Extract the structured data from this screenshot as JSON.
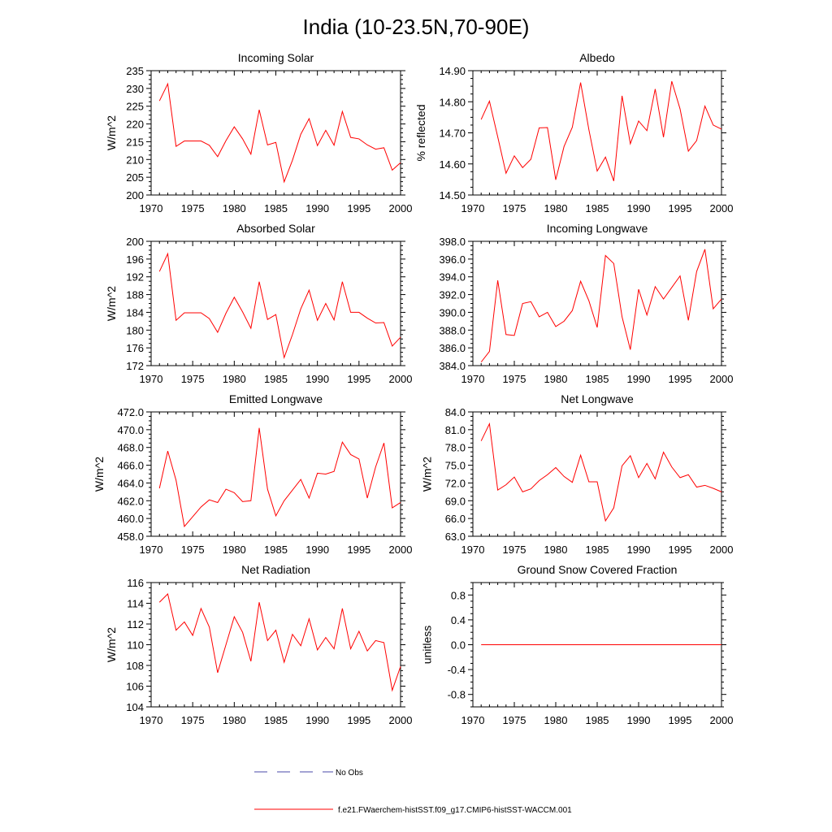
{
  "figure": {
    "title": "India (10-23.5N,70-90E)"
  },
  "legend": {
    "entries": [
      {
        "label": "No Obs",
        "color": "#4a4aa8",
        "dash": true
      },
      {
        "label": "f.e21.FWaerchem-histSST.f09_g17.CMIP6-histSST-WACCM.001",
        "color": "#ff0000",
        "dash": false
      }
    ]
  },
  "colors": {
    "series": "#ff0000",
    "axis": "#000000",
    "background": "#ffffff"
  },
  "chart_data": [
    {
      "type": "line",
      "title": "Incoming Solar",
      "xlabel": "",
      "ylabel": "W/m^2",
      "xlim": [
        1970,
        2000
      ],
      "ylim": [
        200,
        235
      ],
      "xticks": [
        1970,
        1975,
        1980,
        1985,
        1990,
        1995,
        2000
      ],
      "yticks": [
        "200",
        "205",
        "210",
        "215",
        "220",
        "225",
        "230",
        "235"
      ],
      "x": [
        1971,
        1972,
        1973,
        1974,
        1975,
        1976,
        1977,
        1978,
        1979,
        1980,
        1981,
        1982,
        1983,
        1984,
        1985,
        1986,
        1987,
        1988,
        1989,
        1990,
        1991,
        1992,
        1993,
        1994,
        1995,
        1996,
        1997,
        1998,
        1999,
        2000
      ],
      "series": [
        {
          "values": [
            226.5,
            231.3,
            213.7,
            215.2,
            215.2,
            215.2,
            214.0,
            210.8,
            215.3,
            219.2,
            215.8,
            211.5,
            224.0,
            214.1,
            214.8,
            203.7,
            209.8,
            217.1,
            221.5,
            213.9,
            218.2,
            214.0,
            223.5,
            216.2,
            215.8,
            214.1,
            212.9,
            213.3,
            207.0,
            209.1
          ]
        }
      ]
    },
    {
      "type": "line",
      "title": "Albedo",
      "xlabel": "",
      "ylabel": "% reflected",
      "xlim": [
        1970,
        2000
      ],
      "ylim": [
        14.5,
        14.9
      ],
      "xticks": [
        1970,
        1975,
        1980,
        1985,
        1990,
        1995,
        2000
      ],
      "yticks": [
        "14.50",
        "14.60",
        "14.70",
        "14.80",
        "14.90"
      ],
      "x": [
        1971,
        1972,
        1973,
        1974,
        1975,
        1976,
        1977,
        1978,
        1979,
        1980,
        1981,
        1982,
        1983,
        1984,
        1985,
        1986,
        1987,
        1988,
        1989,
        1990,
        1991,
        1992,
        1993,
        1994,
        1995,
        1996,
        1997,
        1998,
        1999,
        2000
      ],
      "series": [
        {
          "values": [
            14.743,
            14.802,
            14.687,
            14.57,
            14.626,
            14.588,
            14.615,
            14.716,
            14.717,
            14.549,
            14.656,
            14.718,
            14.862,
            14.71,
            14.577,
            14.622,
            14.545,
            14.819,
            14.665,
            14.738,
            14.707,
            14.841,
            14.686,
            14.866,
            14.777,
            14.641,
            14.675,
            14.786,
            14.725,
            14.712
          ]
        }
      ]
    },
    {
      "type": "line",
      "title": "Absorbed Solar",
      "xlabel": "",
      "ylabel": "W/m^2",
      "xlim": [
        1970,
        2000
      ],
      "ylim": [
        172,
        200
      ],
      "xticks": [
        1970,
        1975,
        1980,
        1985,
        1990,
        1995,
        2000
      ],
      "yticks": [
        "172",
        "176",
        "180",
        "184",
        "188",
        "192",
        "196",
        "200"
      ],
      "x": [
        1971,
        1972,
        1973,
        1974,
        1975,
        1976,
        1977,
        1978,
        1979,
        1980,
        1981,
        1982,
        1983,
        1984,
        1985,
        1986,
        1987,
        1988,
        1989,
        1990,
        1991,
        1992,
        1993,
        1994,
        1995,
        1996,
        1997,
        1998,
        1999,
        2000
      ],
      "series": [
        {
          "values": [
            193.2,
            197.2,
            182.2,
            183.9,
            183.9,
            183.9,
            182.6,
            179.5,
            183.8,
            187.4,
            184.1,
            180.4,
            190.9,
            182.4,
            183.5,
            173.8,
            179.0,
            184.8,
            189.0,
            182.2,
            186.0,
            182.3,
            190.9,
            184.0,
            184.0,
            182.7,
            181.6,
            181.7,
            176.4,
            178.4
          ]
        }
      ]
    },
    {
      "type": "line",
      "title": "Incoming Longwave",
      "xlabel": "",
      "ylabel": "",
      "xlim": [
        1970,
        2000
      ],
      "ylim": [
        384.0,
        398.0
      ],
      "xticks": [
        1970,
        1975,
        1980,
        1985,
        1990,
        1995,
        2000
      ],
      "yticks": [
        "384.0",
        "386.0",
        "388.0",
        "390.0",
        "392.0",
        "394.0",
        "396.0",
        "398.0"
      ],
      "x": [
        1971,
        1972,
        1973,
        1974,
        1975,
        1976,
        1977,
        1978,
        1979,
        1980,
        1981,
        1982,
        1983,
        1984,
        1985,
        1986,
        1987,
        1988,
        1989,
        1990,
        1991,
        1992,
        1993,
        1994,
        1995,
        1996,
        1997,
        1998,
        1999,
        2000
      ],
      "series": [
        {
          "values": [
            384.4,
            385.6,
            393.6,
            387.5,
            387.4,
            391.0,
            391.2,
            389.5,
            390.0,
            388.4,
            389.0,
            390.2,
            393.5,
            391.3,
            388.3,
            396.4,
            395.5,
            389.5,
            385.8,
            392.6,
            389.7,
            392.9,
            391.5,
            392.8,
            394.1,
            389.1,
            394.6,
            397.1,
            390.4,
            391.5
          ]
        }
      ]
    },
    {
      "type": "line",
      "title": "Emitted Longwave",
      "xlabel": "",
      "ylabel": "W/m^2",
      "xlim": [
        1970,
        2000
      ],
      "ylim": [
        458.0,
        472.0
      ],
      "xticks": [
        1970,
        1975,
        1980,
        1985,
        1990,
        1995,
        2000
      ],
      "yticks": [
        "458.0",
        "460.0",
        "462.0",
        "464.0",
        "466.0",
        "468.0",
        "470.0",
        "472.0"
      ],
      "x": [
        1971,
        1972,
        1973,
        1974,
        1975,
        1976,
        1977,
        1978,
        1979,
        1980,
        1981,
        1982,
        1983,
        1984,
        1985,
        1986,
        1987,
        1988,
        1989,
        1990,
        1991,
        1992,
        1993,
        1994,
        1995,
        1996,
        1997,
        1998,
        1999,
        2000
      ],
      "series": [
        {
          "values": [
            463.4,
            467.6,
            464.3,
            459.1,
            460.2,
            461.3,
            462.1,
            461.8,
            463.3,
            462.9,
            461.9,
            462.0,
            470.2,
            463.3,
            460.3,
            462.0,
            463.2,
            464.4,
            462.3,
            465.1,
            465.0,
            465.3,
            468.6,
            467.2,
            466.7,
            462.3,
            465.8,
            468.5,
            461.2,
            461.8
          ]
        }
      ]
    },
    {
      "type": "line",
      "title": "Net Longwave",
      "xlabel": "",
      "ylabel": "W/m^2",
      "xlim": [
        1970,
        2000
      ],
      "ylim": [
        63.0,
        84.0
      ],
      "xticks": [
        1970,
        1975,
        1980,
        1985,
        1990,
        1995,
        2000
      ],
      "yticks": [
        "63.0",
        "66.0",
        "69.0",
        "72.0",
        "75.0",
        "78.0",
        "81.0",
        "84.0"
      ],
      "x": [
        1971,
        1972,
        1973,
        1974,
        1975,
        1976,
        1977,
        1978,
        1979,
        1980,
        1981,
        1982,
        1983,
        1984,
        1985,
        1986,
        1987,
        1988,
        1989,
        1990,
        1991,
        1992,
        1993,
        1994,
        1995,
        1996,
        1997,
        1998,
        1999,
        2000
      ],
      "series": [
        {
          "values": [
            79.1,
            82.0,
            70.8,
            71.7,
            73.0,
            70.5,
            71.0,
            72.4,
            73.4,
            74.6,
            73.1,
            72.1,
            76.7,
            72.2,
            72.2,
            65.6,
            67.8,
            74.9,
            76.6,
            72.9,
            75.3,
            72.7,
            77.2,
            74.7,
            72.9,
            73.4,
            71.3,
            71.6,
            71.1,
            70.5
          ]
        }
      ]
    },
    {
      "type": "line",
      "title": "Net Radiation",
      "xlabel": "",
      "ylabel": "W/m^2",
      "xlim": [
        1970,
        2000
      ],
      "ylim": [
        104,
        116
      ],
      "xticks": [
        1970,
        1975,
        1980,
        1985,
        1990,
        1995,
        2000
      ],
      "yticks": [
        "104",
        "106",
        "108",
        "110",
        "112",
        "114",
        "116"
      ],
      "x": [
        1971,
        1972,
        1973,
        1974,
        1975,
        1976,
        1977,
        1978,
        1979,
        1980,
        1981,
        1982,
        1983,
        1984,
        1985,
        1986,
        1987,
        1988,
        1989,
        1990,
        1991,
        1992,
        1993,
        1994,
        1995,
        1996,
        1997,
        1998,
        1999,
        2000
      ],
      "series": [
        {
          "values": [
            114.1,
            114.9,
            111.4,
            112.2,
            110.9,
            113.5,
            111.7,
            107.3,
            110.0,
            112.7,
            111.2,
            108.4,
            114.1,
            110.4,
            111.4,
            108.3,
            111.0,
            109.9,
            112.5,
            109.5,
            110.7,
            109.6,
            113.5,
            109.6,
            111.3,
            109.4,
            110.4,
            110.2,
            105.6,
            107.9
          ]
        }
      ]
    },
    {
      "type": "line",
      "title": "Ground Snow Covered Fraction",
      "xlabel": "",
      "ylabel": "unitless",
      "xlim": [
        1970,
        2000
      ],
      "ylim": [
        -1.0,
        1.0
      ],
      "xticks": [
        1970,
        1975,
        1980,
        1985,
        1990,
        1995,
        2000
      ],
      "yticks": [
        "-0.8",
        "-0.4",
        "0.0",
        "0.4",
        "0.8"
      ],
      "x": [
        1971,
        1972,
        1973,
        1974,
        1975,
        1976,
        1977,
        1978,
        1979,
        1980,
        1981,
        1982,
        1983,
        1984,
        1985,
        1986,
        1987,
        1988,
        1989,
        1990,
        1991,
        1992,
        1993,
        1994,
        1995,
        1996,
        1997,
        1998,
        1999,
        2000
      ],
      "series": [
        {
          "values": [
            0,
            0,
            0,
            0,
            0,
            0,
            0,
            0,
            0,
            0,
            0,
            0,
            0,
            0,
            0,
            0,
            0,
            0,
            0,
            0,
            0,
            0,
            0,
            0,
            0,
            0,
            0,
            0,
            0,
            0
          ]
        }
      ]
    }
  ]
}
